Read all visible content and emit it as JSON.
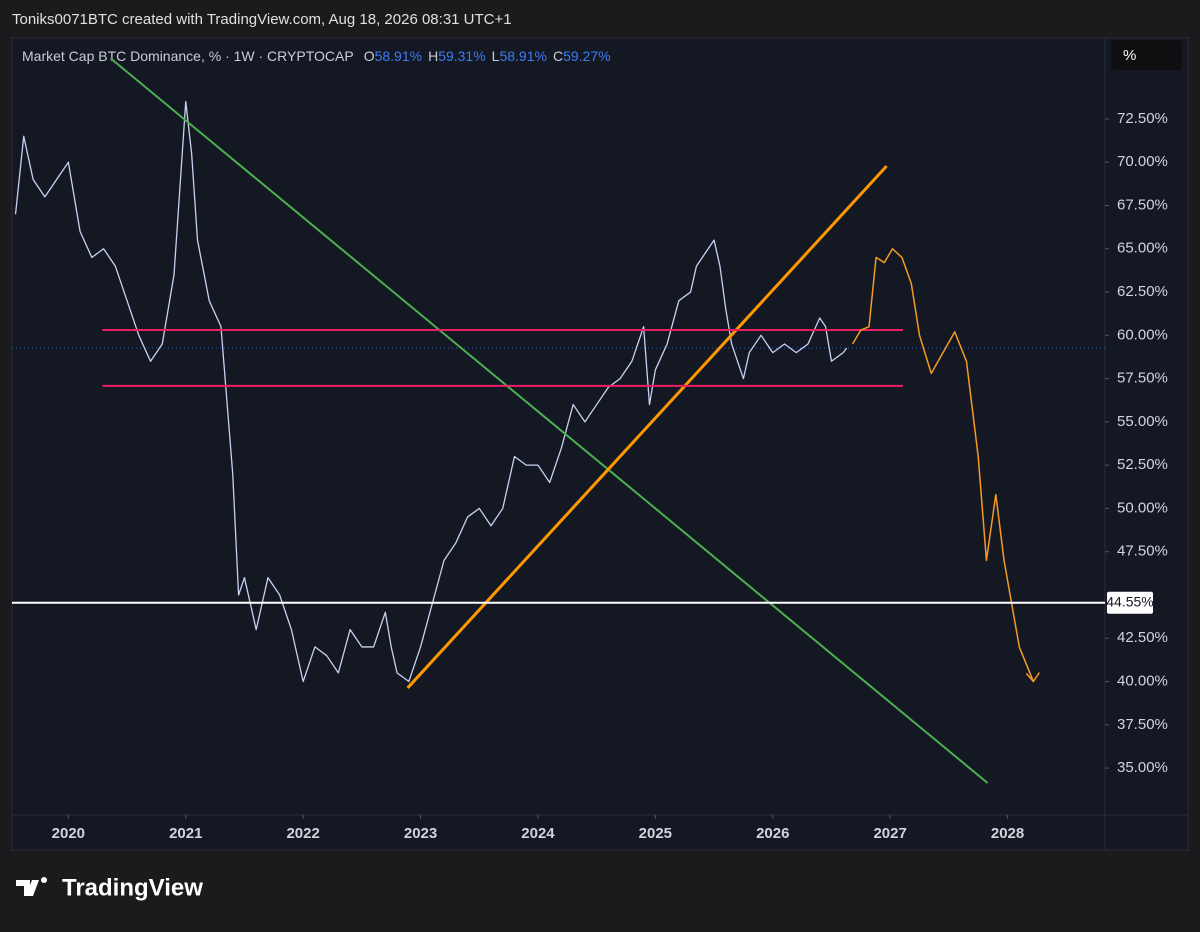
{
  "header": {
    "credit": "Toniks0071BTC created with TradingView.com, Aug 18, 2026 08:31 UTC+1",
    "unit_button": "%",
    "logo": "TradingView"
  },
  "chart_data": {
    "type": "line",
    "title": "Market Cap BTC Dominance, % · 1W · CRYPTOCAP",
    "ohlc": {
      "names": [
        "O",
        "H",
        "L",
        "C"
      ],
      "values": [
        58.91,
        59.31,
        58.91,
        59.27
      ],
      "value_labels": [
        "58.91%",
        "59.31%",
        "58.91%",
        "59.27%"
      ]
    },
    "xlim": [
      2019.52,
      2028.83
    ],
    "xticks": [
      2020,
      2021,
      2022,
      2023,
      2024,
      2025,
      2026,
      2027,
      2028
    ],
    "ylim": [
      32.29,
      77.06
    ],
    "yticks": [
      {
        "value": 35,
        "label": "35.00%"
      },
      {
        "value": 37.5,
        "label": "37.50%"
      },
      {
        "value": 40,
        "label": "40.00%"
      },
      {
        "value": 42.5,
        "label": "42.50%"
      },
      {
        "value": 47.5,
        "label": "47.50%"
      },
      {
        "value": 50,
        "label": "50.00%"
      },
      {
        "value": 52.5,
        "label": "52.50%"
      },
      {
        "value": 55,
        "label": "55.00%"
      },
      {
        "value": 57.5,
        "label": "57.50%"
      },
      {
        "value": 60,
        "label": "60.00%"
      },
      {
        "value": 62.5,
        "label": "62.50%"
      },
      {
        "value": 65,
        "label": "65.00%"
      },
      {
        "value": 67.5,
        "label": "67.50%"
      },
      {
        "value": 70,
        "label": "70.00%"
      },
      {
        "value": 72.5,
        "label": "72.50%"
      }
    ],
    "hlines": [
      {
        "value": 44.55,
        "label": "44.55%",
        "color": "#ffffff"
      }
    ],
    "series": [
      {
        "color": "#c9d1f2",
        "width": 1.3,
        "x": [
          2019.55,
          2019.62,
          2019.7,
          2019.8,
          2019.9,
          2020.0,
          2020.1,
          2020.2,
          2020.3,
          2020.4,
          2020.5,
          2020.6,
          2020.7,
          2020.8,
          2020.9,
          2021.0,
          2021.05,
          2021.1,
          2021.2,
          2021.3,
          2021.4,
          2021.45,
          2021.5,
          2021.6,
          2021.7,
          2021.8,
          2021.9,
          2022.0,
          2022.1,
          2022.2,
          2022.3,
          2022.4,
          2022.5,
          2022.6,
          2022.7,
          2022.75,
          2022.8,
          2022.9,
          2023.0,
          2023.1,
          2023.2,
          2023.3,
          2023.4,
          2023.5,
          2023.6,
          2023.7,
          2023.8,
          2023.9,
          2024.0,
          2024.1,
          2024.2,
          2024.3,
          2024.4,
          2024.5,
          2024.6,
          2024.7,
          2024.8,
          2024.9,
          2024.95,
          2025.0,
          2025.1,
          2025.2,
          2025.3,
          2025.35,
          2025.45,
          2025.5,
          2025.55,
          2025.6,
          2025.65,
          2025.7,
          2025.75,
          2025.8,
          2025.9,
          2026.0,
          2026.1,
          2026.2,
          2026.3,
          2026.4,
          2026.45,
          2026.5,
          2026.6,
          2026.63
        ],
        "values": [
          67,
          71.5,
          69,
          68,
          69,
          70,
          66,
          64.5,
          65,
          64,
          62,
          60,
          58.5,
          59.5,
          63.5,
          73.5,
          70.5,
          65.5,
          62,
          60.5,
          52,
          45,
          46,
          43,
          46,
          45,
          43,
          40,
          42,
          41.5,
          40.5,
          43,
          42,
          42,
          44,
          42,
          40.5,
          40,
          42,
          44.5,
          47,
          48,
          49.5,
          50,
          49,
          50,
          53,
          52.5,
          52.5,
          51.5,
          53.5,
          56,
          55,
          56,
          57,
          57.5,
          58.5,
          60.5,
          56,
          58,
          59.5,
          62,
          62.5,
          64,
          65,
          65.5,
          64,
          61.5,
          59.5,
          58.5,
          57.5,
          59,
          60,
          59,
          59.5,
          59,
          59.5,
          61,
          60.5,
          58.5,
          59,
          59.27
        ]
      },
      {
        "color": "#4caf50",
        "width": 2,
        "x": [
          2020.36,
          2027.83
        ],
        "values": [
          76.0,
          34.14
        ]
      },
      {
        "color": "#ff9800",
        "width": 3,
        "x": [
          2022.89,
          2026.97
        ],
        "values": [
          39.63,
          69.78
        ]
      },
      {
        "color": "#e91e63",
        "width": 2,
        "x": [
          2020.29,
          2027.11
        ],
        "values": [
          60.31,
          60.31
        ]
      },
      {
        "color": "#e91e63",
        "width": 2,
        "x": [
          2020.29,
          2027.11
        ],
        "values": [
          57.08,
          57.08
        ]
      },
      {
        "color": "#f59a23",
        "width": 1.5,
        "x": [
          2026.68,
          2026.75,
          2026.82,
          2026.88,
          2026.95,
          2027.02,
          2027.1,
          2027.18,
          2027.25,
          2027.35,
          2027.45,
          2027.55,
          2027.65,
          2027.75,
          2027.82,
          2027.9,
          2027.97,
          2028.1,
          2028.22
        ],
        "values": [
          59.5,
          60.3,
          60.5,
          64.5,
          64.2,
          65,
          64.5,
          63,
          60,
          57.8,
          59,
          60.2,
          58.5,
          53,
          47,
          50.8,
          47,
          42,
          40
        ]
      }
    ]
  }
}
